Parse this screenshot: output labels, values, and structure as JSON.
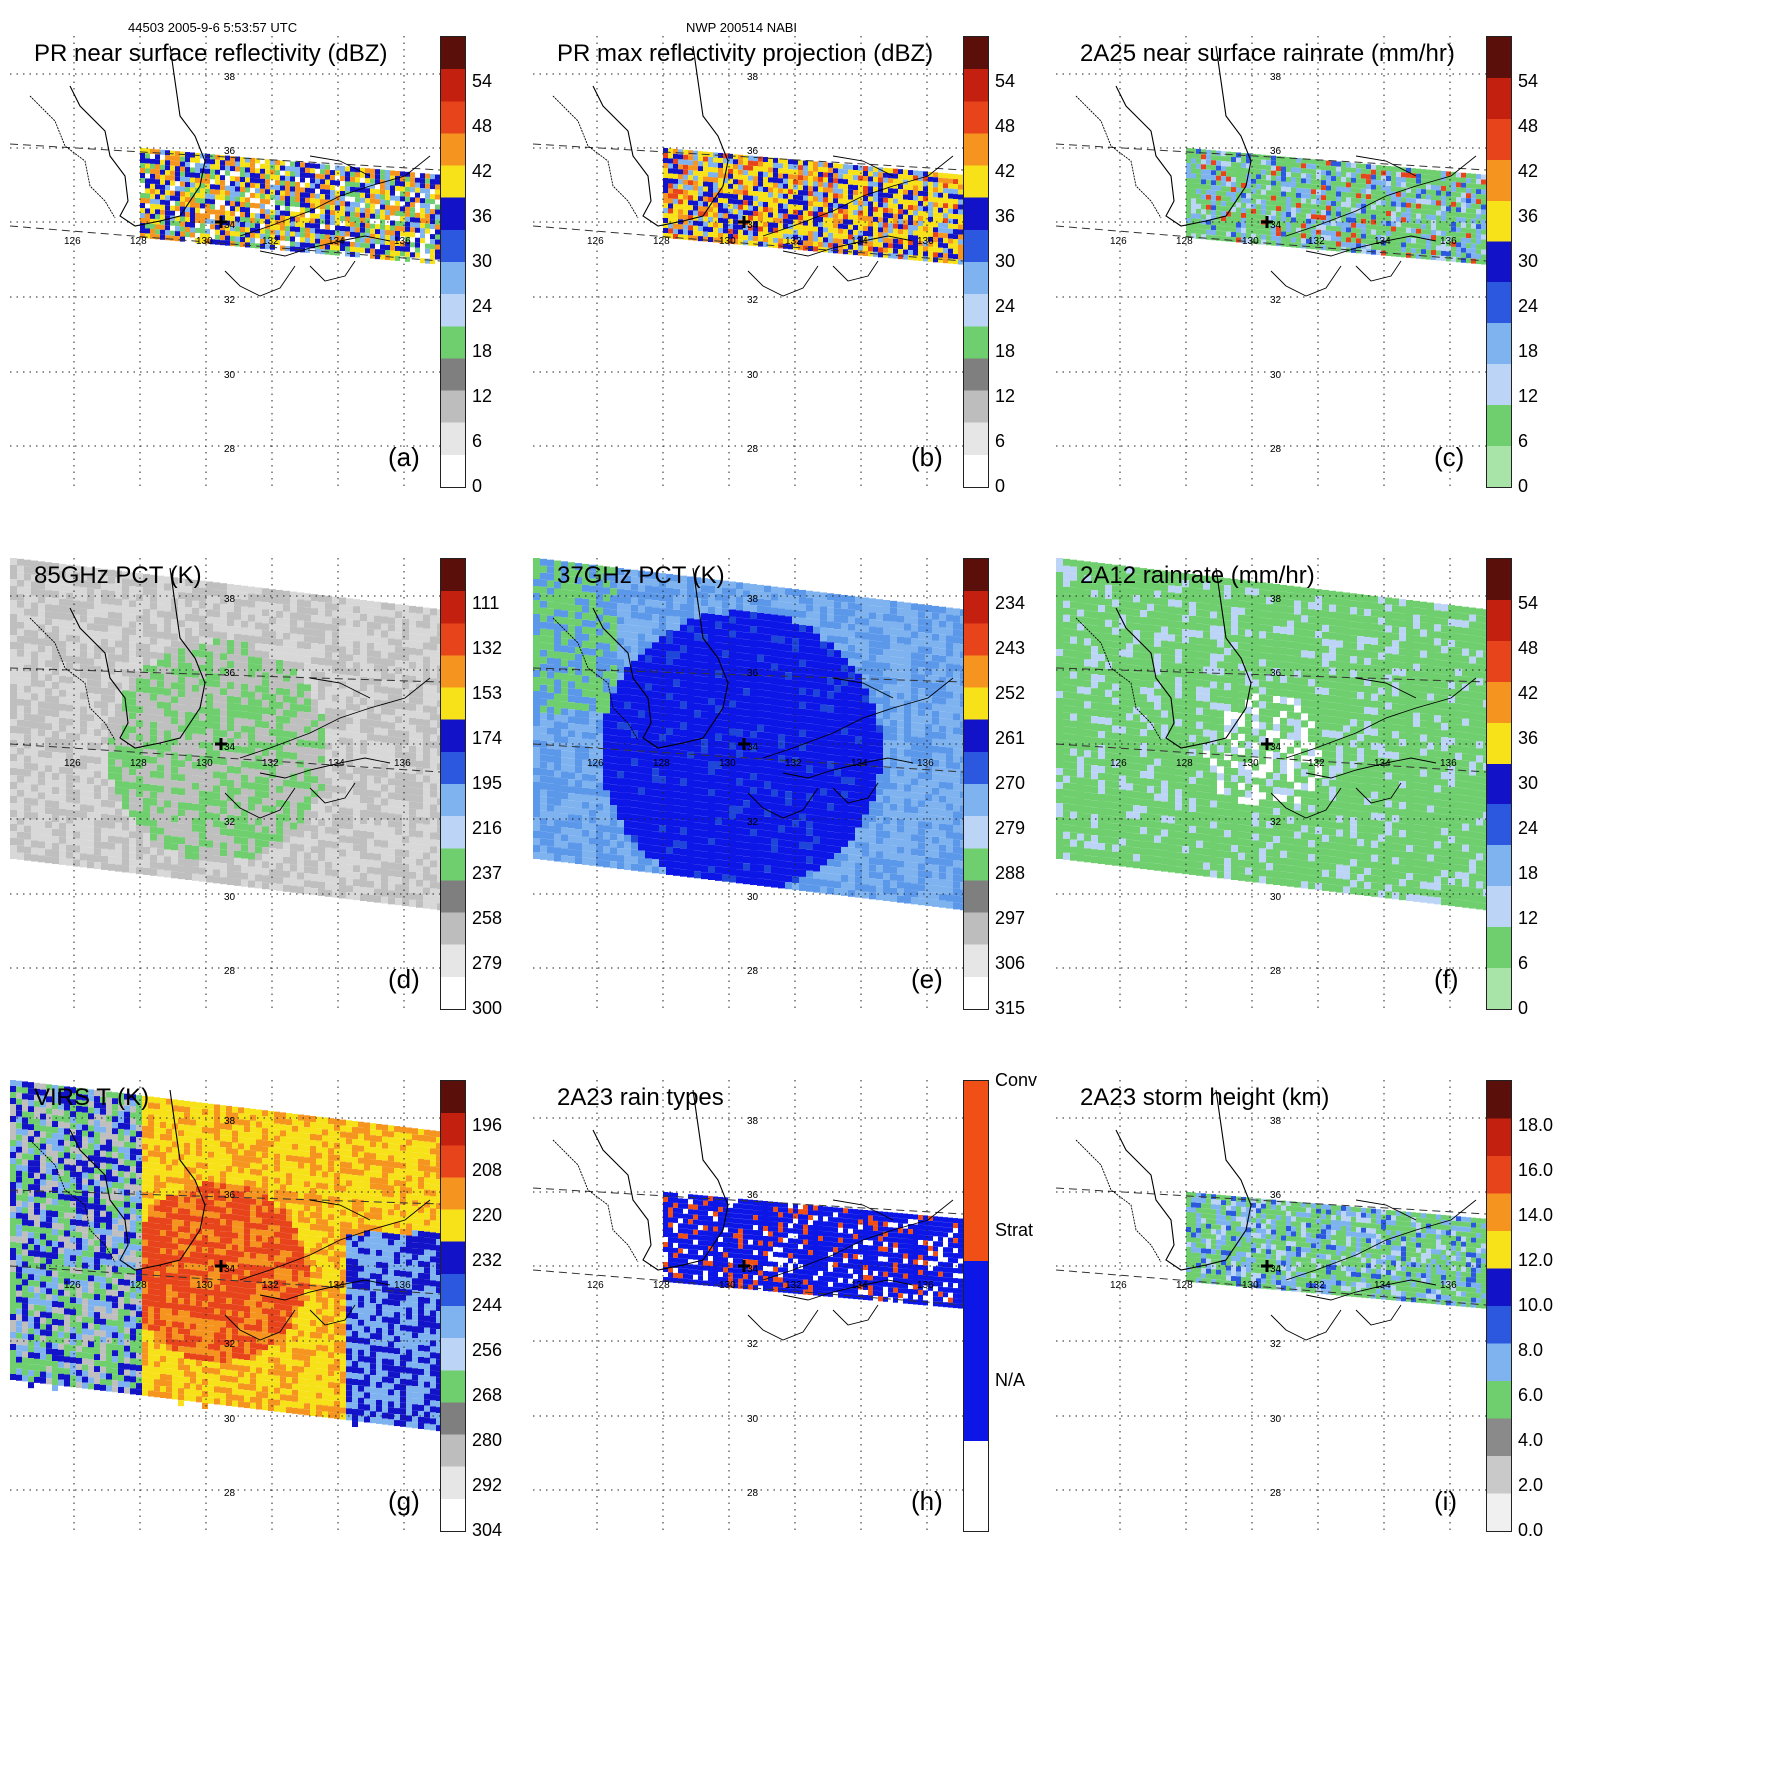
{
  "header": {
    "left": "44503 2005-9-6 5:53:57 UTC",
    "center": "NWP 200514 NABI"
  },
  "panels": [
    {
      "id": "a",
      "title": "PR near surface reflectivity (dBZ)",
      "letter": "(a)",
      "swath": "pr",
      "colors": "dbz",
      "cbar": [
        "54",
        "48",
        "42",
        "36",
        "30",
        "24",
        "18",
        "12",
        "6",
        "0"
      ],
      "cbar_scheme": "dbz"
    },
    {
      "id": "b",
      "title": "PR max reflectivity projection (dBZ)",
      "letter": "(b)",
      "swath": "pr",
      "colors": "dbz2",
      "cbar": [
        "54",
        "48",
        "42",
        "36",
        "30",
        "24",
        "18",
        "12",
        "6",
        "0"
      ],
      "cbar_scheme": "dbz"
    },
    {
      "id": "c",
      "title": "2A25 near surface rainrate (mm/hr)",
      "letter": "(c)",
      "swath": "pr",
      "colors": "rain",
      "cbar": [
        "54",
        "48",
        "42",
        "36",
        "30",
        "24",
        "18",
        "12",
        "6",
        "0"
      ],
      "cbar_scheme": "rain"
    },
    {
      "id": "d",
      "title": "85GHz PCT (K)",
      "letter": "(d)",
      "swath": "tmi",
      "colors": "pct85",
      "cbar": [
        "111",
        "132",
        "153",
        "174",
        "195",
        "216",
        "237",
        "258",
        "279",
        "300"
      ],
      "cbar_scheme": "dbz"
    },
    {
      "id": "e",
      "title": "37GHz PCT (K)",
      "letter": "(e)",
      "swath": "tmi",
      "colors": "pct37",
      "cbar": [
        "234",
        "243",
        "252",
        "261",
        "270",
        "279",
        "288",
        "297",
        "306",
        "315"
      ],
      "cbar_scheme": "dbz"
    },
    {
      "id": "f",
      "title": "2A12 rainrate (mm/hr)",
      "letter": "(f)",
      "swath": "tmi",
      "colors": "rain12",
      "cbar": [
        "54",
        "48",
        "42",
        "36",
        "30",
        "24",
        "18",
        "12",
        "6",
        "0"
      ],
      "cbar_scheme": "rain"
    },
    {
      "id": "g",
      "title": "VIRS T   (K)",
      "letter": "(g)",
      "swath": "virs",
      "colors": "virs",
      "cbar": [
        "196",
        "208",
        "220",
        "232",
        "244",
        "256",
        "268",
        "280",
        "292",
        "304"
      ],
      "cbar_scheme": "dbz"
    },
    {
      "id": "h",
      "title": "2A23 rain types",
      "letter": "(h)",
      "swath": "pr",
      "colors": "types",
      "cbar": [
        "Conv",
        "Strat",
        "N/A"
      ],
      "cbar_scheme": "types"
    },
    {
      "id": "i",
      "title": "2A23 storm height (km)",
      "letter": "(i)",
      "swath": "pr",
      "colors": "height",
      "cbar": [
        "18.0",
        "16.0",
        "14.0",
        "12.0",
        "10.0",
        "8.0",
        "6.0",
        "4.0",
        "2.0",
        "0.0"
      ],
      "cbar_scheme": "height"
    }
  ],
  "grid": {
    "lat_labels": [
      "38",
      "36",
      "34",
      "32",
      "30",
      "28"
    ],
    "lon_labels": [
      "126",
      "128",
      "130",
      "132",
      "134",
      "136"
    ]
  },
  "colors": {
    "green": "#6fd36f",
    "blue": "#0a1adc",
    "lightblue": "#7fb6f2",
    "yellow": "#f2dd10",
    "orange": "#f28a1e",
    "red": "#d92a14",
    "darkred": "#7a1a10",
    "gray": "#9a9a9a"
  }
}
